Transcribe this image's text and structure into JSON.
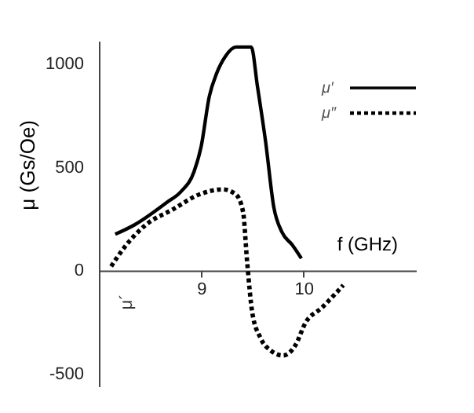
{
  "chart_data": {
    "type": "line",
    "xlabel": "f (GHz)",
    "ylabel": "μ (Gs/Oe)",
    "xlim": [
      8.0,
      11.1
    ],
    "ylim": [
      -560,
      1110
    ],
    "xticks": [
      9,
      10
    ],
    "yticks": [
      -500,
      0,
      500,
      1000
    ],
    "legend": "top right",
    "grid": false,
    "marker": "none",
    "annotations": [
      "μ´"
    ],
    "series": [
      {
        "name": "μ′",
        "color": "#000000",
        "line_style": "solid",
        "x": [
          8.16,
          8.35,
          8.67,
          8.8,
          8.93,
          9.0,
          9.08,
          9.15,
          9.24,
          9.34,
          9.49,
          9.55,
          9.63,
          9.71,
          9.79,
          9.89,
          9.98
        ],
        "values": [
          175,
          221,
          331,
          380,
          477,
          599,
          842,
          951,
          1037,
          1080,
          1080,
          891,
          623,
          307,
          185,
          124,
          58
        ]
      },
      {
        "name": "μ″",
        "color": "#000000",
        "line_style": "dotted",
        "x": [
          8.12,
          8.25,
          8.46,
          8.72,
          8.98,
          9.21,
          9.34,
          9.41,
          9.45,
          9.5,
          9.58,
          9.68,
          9.8,
          9.92,
          10.02,
          10.18,
          10.39
        ],
        "values": [
          20,
          112,
          221,
          294,
          367,
          392,
          367,
          283,
          39,
          -204,
          -326,
          -387,
          -411,
          -363,
          -253,
          -180,
          -71
        ]
      }
    ]
  }
}
